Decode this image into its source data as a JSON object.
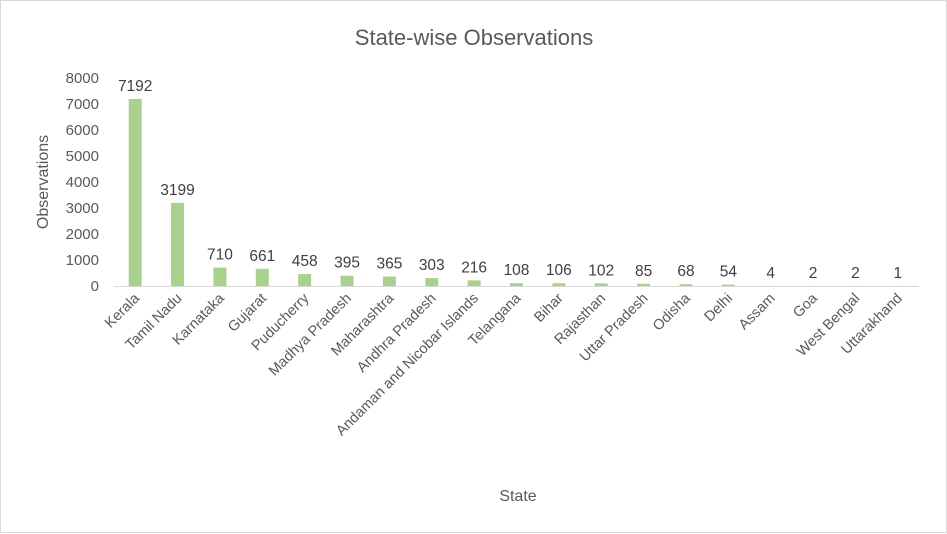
{
  "chart_data": {
    "type": "bar",
    "title": "State-wise Observations",
    "xlabel": "State",
    "ylabel": "Observations",
    "ylim": [
      0,
      8000
    ],
    "yticks": [
      0,
      1000,
      2000,
      3000,
      4000,
      5000,
      6000,
      7000,
      8000
    ],
    "grid": false,
    "legend": "none",
    "bar_color": "#a9d18e",
    "categories": [
      "Kerala",
      "Tamil Nadu",
      "Karnataka",
      "Gujarat",
      "Puducherry",
      "Madhya Pradesh",
      "Maharashtra",
      "Andhra Pradesh",
      "Andaman and Nicobar Islands",
      "Telangana",
      "Bihar",
      "Rajasthan",
      "Uttar Pradesh",
      "Odisha",
      "Delhi",
      "Assam",
      "Goa",
      "West Bengal",
      "Uttarakhand"
    ],
    "values": [
      7192,
      3199,
      710,
      661,
      458,
      395,
      365,
      303,
      216,
      108,
      106,
      102,
      85,
      68,
      54,
      4,
      2,
      2,
      1
    ]
  }
}
